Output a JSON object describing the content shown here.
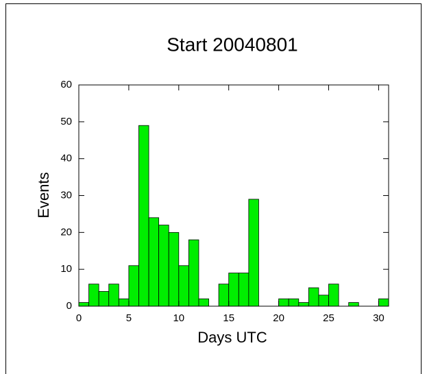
{
  "chart_data": {
    "type": "histogram",
    "title": "Start 20040801",
    "xlabel": "Days UTC",
    "ylabel": "Events",
    "bins": [
      0,
      1,
      2,
      3,
      4,
      5,
      6,
      7,
      8,
      9,
      10,
      11,
      12,
      13,
      14,
      15,
      16,
      17,
      18,
      19,
      20,
      21,
      22,
      23,
      24,
      25,
      26,
      27,
      28,
      29,
      30,
      31
    ],
    "counts": [
      1,
      6,
      4,
      6,
      2,
      11,
      49,
      24,
      22,
      20,
      11,
      18,
      2,
      0,
      6,
      9,
      9,
      29,
      0,
      0,
      2,
      2,
      1,
      5,
      3,
      6,
      0,
      1,
      0,
      0,
      2
    ],
    "color": "#00ee00",
    "xlim": [
      0,
      31
    ],
    "xticks": [
      0,
      5,
      10,
      15,
      20,
      25,
      30
    ],
    "ylim": [
      0,
      60
    ],
    "yticks": [
      0,
      10,
      20,
      30,
      40,
      50,
      60
    ]
  }
}
